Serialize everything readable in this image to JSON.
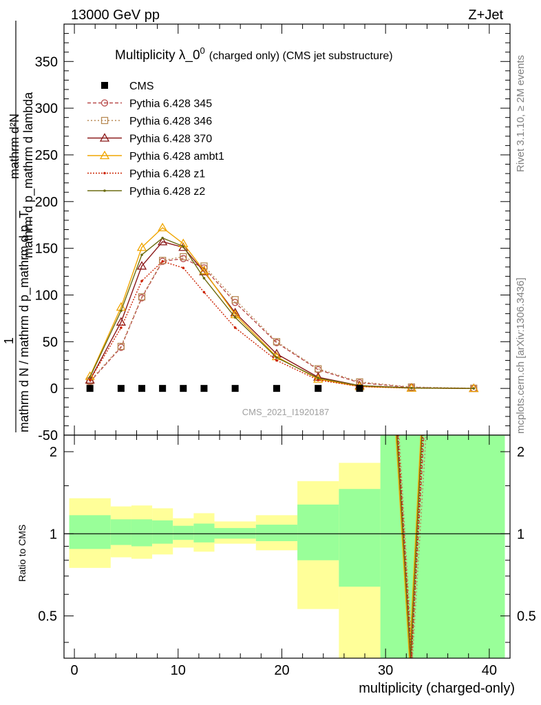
{
  "header": {
    "left": "13000 GeV pp",
    "right": "Z+Jet"
  },
  "title": {
    "main": "Multiplicity λ_0",
    "sup": "0",
    "sub": "(charged only) (CMS jet substructure)"
  },
  "side_labels": {
    "rivet": "Rivet 3.1.10, ≥ 2M events",
    "mcplots": "mcplots.cern.ch [arXiv:1306.3436]"
  },
  "watermark": "CMS_2021_I1920187",
  "ylabel_main": {
    "numerator": "mathrm d²N",
    "denominator": "mathrm d p_mathrm d lambda",
    "fraction_top": "1",
    "fraction_bottom": "mathrm d N / mathrm d p_mathrm d p_T"
  },
  "ylabel_ratio": "Ratio to CMS",
  "xlabel": "multiplicity (charged-only)",
  "legend": [
    {
      "label": "CMS",
      "color": "#000000",
      "marker": "square-filled",
      "dash": ""
    },
    {
      "label": "Pythia 6.428 345",
      "color": "#b84a4a",
      "marker": "circle",
      "dash": "5,3"
    },
    {
      "label": "Pythia 6.428 346",
      "color": "#b88a55",
      "marker": "square",
      "dash": "2,3"
    },
    {
      "label": "Pythia 6.428 370",
      "color": "#8b1a1a",
      "marker": "triangle",
      "dash": ""
    },
    {
      "label": "Pythia 6.428 ambt1",
      "color": "#f0a500",
      "marker": "triangle",
      "dash": ""
    },
    {
      "label": "Pythia 6.428 z1",
      "color": "#cc2200",
      "marker": "dot",
      "dash": "2,2"
    },
    {
      "label": "Pythia 6.428 z2",
      "color": "#6b6b10",
      "marker": "dot",
      "dash": ""
    }
  ],
  "chart_data": {
    "type": "line",
    "x_ticks": [
      0,
      10,
      20,
      30,
      40
    ],
    "main_y_ticks": [
      -50,
      0,
      50,
      100,
      150,
      200,
      250,
      300,
      350
    ],
    "ratio_y_ticks": [
      0.5,
      1,
      2
    ],
    "xlim": [
      -1,
      42
    ],
    "ylim_main": [
      -50,
      390
    ],
    "ylim_ratio": [
      0.35,
      2.3
    ],
    "ratio_scale": "log",
    "x": [
      1.5,
      4.5,
      6.5,
      8.5,
      10.5,
      12.5,
      15.5,
      19.5,
      23.5,
      27.5,
      32.5,
      38.5
    ],
    "cms": [
      0,
      0,
      0,
      0,
      0,
      0,
      0,
      0,
      0,
      0,
      null,
      null
    ],
    "series": [
      {
        "name": "Pythia 6.428 345",
        "values": [
          7,
          44,
          97,
          136,
          139,
          129,
          92,
          49,
          20,
          6,
          1,
          0
        ]
      },
      {
        "name": "Pythia 6.428 346",
        "values": [
          8,
          45,
          98,
          137,
          141,
          131,
          95,
          50,
          21,
          7,
          1.5,
          0.2
        ]
      },
      {
        "name": "Pythia 6.428 370",
        "values": [
          9,
          71,
          131,
          157,
          151,
          125,
          81,
          37,
          12,
          3,
          0.5,
          0
        ]
      },
      {
        "name": "Pythia 6.428 ambt1",
        "values": [
          13,
          87,
          151,
          172,
          155,
          126,
          79,
          34,
          10,
          2,
          0.3,
          0
        ]
      },
      {
        "name": "Pythia 6.428 z1",
        "values": [
          9,
          65,
          115,
          136,
          129,
          103,
          65,
          30,
          9,
          2,
          0.3,
          0
        ]
      },
      {
        "name": "Pythia 6.428 z2",
        "values": [
          12,
          83,
          143,
          161,
          152,
          118,
          76,
          33,
          11,
          3,
          0.4,
          0
        ]
      }
    ],
    "ratio_bands": [
      {
        "x0": -0.5,
        "x1": 3.5,
        "yellow": [
          0.75,
          1.35
        ],
        "green": [
          0.88,
          1.17
        ]
      },
      {
        "x0": 3.5,
        "x1": 5.5,
        "yellow": [
          0.82,
          1.26
        ],
        "green": [
          0.91,
          1.13
        ]
      },
      {
        "x0": 5.5,
        "x1": 7.5,
        "yellow": [
          0.81,
          1.27
        ],
        "green": [
          0.9,
          1.13
        ]
      },
      {
        "x0": 7.5,
        "x1": 9.5,
        "yellow": [
          0.84,
          1.24
        ],
        "green": [
          0.92,
          1.12
        ]
      },
      {
        "x0": 9.5,
        "x1": 11.5,
        "yellow": [
          0.89,
          1.14
        ],
        "green": [
          0.95,
          1.07
        ]
      },
      {
        "x0": 11.5,
        "x1": 13.5,
        "yellow": [
          0.86,
          1.19
        ],
        "green": [
          0.93,
          1.09
        ]
      },
      {
        "x0": 13.5,
        "x1": 17.5,
        "yellow": [
          0.92,
          1.11
        ],
        "green": [
          0.96,
          1.05
        ]
      },
      {
        "x0": 17.5,
        "x1": 21.5,
        "yellow": [
          0.87,
          1.17
        ],
        "green": [
          0.94,
          1.08
        ]
      },
      {
        "x0": 21.5,
        "x1": 25.5,
        "yellow": [
          0.53,
          1.56
        ],
        "green": [
          0.8,
          1.28
        ]
      },
      {
        "x0": 25.5,
        "x1": 29.5,
        "yellow": [
          0.35,
          1.82
        ],
        "green": [
          0.64,
          1.46
        ]
      },
      {
        "x0": 29.5,
        "x1": 41.5,
        "yellow": [
          0.35,
          2.3
        ],
        "green": [
          0.35,
          2.3
        ]
      }
    ],
    "ratio_lines": [
      {
        "color": "#b84a4a",
        "dash": "5,3",
        "points": [
          [
            31.2,
            2.3
          ],
          [
            32.5,
            0.35
          ],
          [
            33.7,
            2.3
          ]
        ]
      },
      {
        "color": "#b88a55",
        "dash": "2,3",
        "points": [
          [
            31.3,
            2.3
          ],
          [
            32.6,
            0.35
          ],
          [
            33.9,
            2.3
          ]
        ]
      },
      {
        "color": "#8b1a1a",
        "dash": "",
        "points": [
          [
            31.1,
            2.3
          ],
          [
            32.4,
            0.35
          ],
          [
            33.5,
            2.3
          ]
        ]
      },
      {
        "color": "#f0a500",
        "dash": "",
        "points": [
          [
            31.0,
            2.3
          ],
          [
            32.3,
            0.35
          ],
          [
            33.4,
            2.3
          ]
        ]
      },
      {
        "color": "#cc2200",
        "dash": "2,2",
        "points": [
          [
            31.2,
            2.3
          ],
          [
            32.5,
            0.35
          ],
          [
            33.6,
            2.3
          ]
        ]
      },
      {
        "color": "#6b6b10",
        "dash": "",
        "points": [
          [
            31.1,
            2.3
          ],
          [
            32.4,
            0.35
          ],
          [
            33.5,
            2.3
          ]
        ]
      }
    ]
  }
}
